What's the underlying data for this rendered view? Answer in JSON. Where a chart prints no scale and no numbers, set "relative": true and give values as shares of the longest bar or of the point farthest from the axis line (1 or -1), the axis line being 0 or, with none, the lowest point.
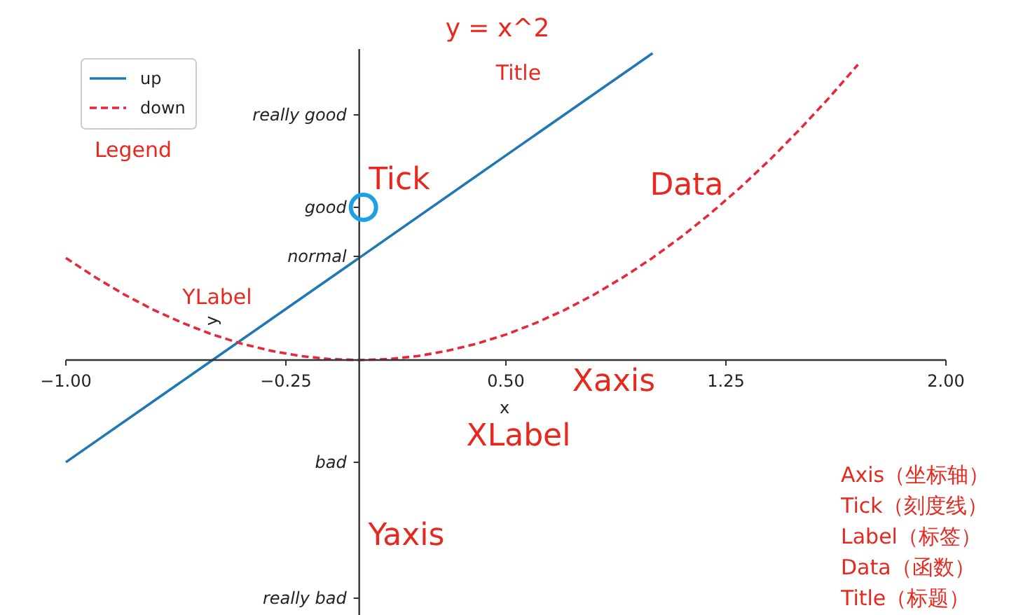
{
  "chart_data": {
    "type": "line",
    "title": "y = x^2",
    "xlabel": "x",
    "ylabel": "y",
    "x": [
      -1,
      -0.5,
      0,
      0.5,
      1
    ],
    "series": [
      {
        "name": "up",
        "color": "#1f77b4",
        "line_style": "solid",
        "values": [
          -0.333,
          0,
          0.333,
          0.667,
          1
        ]
      },
      {
        "name": "down",
        "color": "#e8283a",
        "line_style": "dashed",
        "x": [
          -1,
          -0.9,
          -0.8,
          -0.7,
          -0.6,
          -0.5,
          -0.4,
          -0.3,
          -0.2,
          -0.1,
          0,
          0.1,
          0.2,
          0.3,
          0.4,
          0.5,
          0.6,
          0.7,
          0.8,
          0.9,
          1,
          1.1,
          1.2,
          1.3,
          1.4,
          1.5,
          1.6,
          1.7
        ],
        "values": [
          0.333,
          0.27,
          0.213,
          0.163,
          0.12,
          0.083,
          0.053,
          0.03,
          0.013,
          0.003,
          0,
          0.003,
          0.013,
          0.03,
          0.053,
          0.083,
          0.12,
          0.163,
          0.213,
          0.27,
          0.333,
          0.403,
          0.48,
          0.563,
          0.653,
          0.75,
          0.853,
          0.963
        ]
      }
    ],
    "xlim": [
      -1,
      2
    ],
    "xticks": [
      {
        "value": -1,
        "label": "−1.00"
      },
      {
        "value": -0.25,
        "label": "−0.25"
      },
      {
        "value": 0.5,
        "label": "0.50"
      },
      {
        "value": 1.25,
        "label": "1.25"
      },
      {
        "value": 2,
        "label": "2.00"
      }
    ],
    "relative": true,
    "legend": "top left",
    "marker": "none",
    "annotations": [
      "really bad",
      "bad",
      "normal",
      "good",
      "really good",
      "Title",
      "Legend",
      "Tick",
      "Data",
      "YLabel",
      "Xaxis",
      "XLabel",
      "Yaxis",
      "Axis（坐标轴）",
      "Tick（刻度线）",
      "Label（标签）",
      "Data（函数）",
      "Title（标题）"
    ]
  }
}
